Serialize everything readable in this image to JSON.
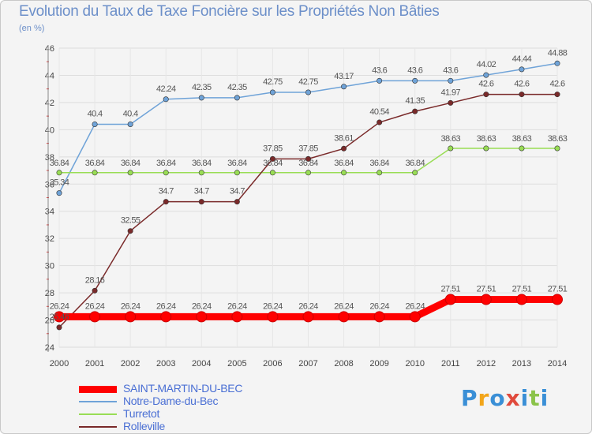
{
  "title": "Evolution du Taux de Taxe Foncière sur les Propriétés Non Bâties",
  "unit_label": "(en %)",
  "logo": {
    "text": "Proxiti",
    "colors": [
      "#3a8fd6",
      "#f2a51a",
      "#3a8fd6",
      "#e04a3c",
      "#3a8fd6",
      "#8bc34a",
      "#3a8fd6"
    ]
  },
  "chart_data": {
    "type": "line",
    "title": "Evolution du Taux de Taxe Foncière sur les Propriétés Non Bâties",
    "ylabel": "(en %)",
    "xlabel": "",
    "x": [
      "2000",
      "2001",
      "2002",
      "2003",
      "2004",
      "2005",
      "2006",
      "2007",
      "2008",
      "2009",
      "2010",
      "2011",
      "2012",
      "2013",
      "2014"
    ],
    "ylim": [
      24,
      46
    ],
    "yticks": [
      24,
      26,
      28,
      30,
      32,
      34,
      36,
      38,
      40,
      42,
      44,
      46
    ],
    "grid": true,
    "series": [
      {
        "name": "SAINT-MARTIN-DU-BEC",
        "color": "#ff0000",
        "values": [
          26.24,
          26.24,
          26.24,
          26.24,
          26.24,
          26.24,
          26.24,
          26.24,
          26.24,
          26.24,
          26.24,
          27.51,
          27.51,
          27.51,
          27.51
        ],
        "labels": [
          "26.24",
          "26.24",
          "26.24",
          "26.24",
          "26.24",
          "26.24",
          "26.24",
          "26.24",
          "26.24",
          "26.24",
          "26.24",
          "27.51",
          "27.51",
          "27.51",
          "27.51"
        ]
      },
      {
        "name": "Notre-Dame-du-Bec",
        "color": "#6fa3d8",
        "values": [
          35.34,
          40.4,
          40.4,
          42.24,
          42.35,
          42.35,
          42.75,
          42.75,
          43.17,
          43.6,
          43.6,
          43.6,
          44.02,
          44.44,
          44.88
        ],
        "labels": [
          "35.34",
          "40.4",
          "40.4",
          "42.24",
          "42.35",
          "42.35",
          "42.75",
          "42.75",
          "43.17",
          "43.6",
          "43.6",
          "43.6",
          "44.02",
          "44.44",
          "44.88"
        ]
      },
      {
        "name": "Turretot",
        "color": "#99dd55",
        "values": [
          36.84,
          36.84,
          36.84,
          36.84,
          36.84,
          36.84,
          36.84,
          36.84,
          36.84,
          36.84,
          36.84,
          38.63,
          38.63,
          38.63,
          38.63
        ],
        "labels": [
          "36.84",
          "36.84",
          "36.84",
          "36.84",
          "36.84",
          "36.84",
          "36.84",
          "36.84",
          "36.84",
          "36.84",
          "36.84",
          "38.63",
          "38.63",
          "38.63",
          "38.63"
        ]
      },
      {
        "name": "Rolleville",
        "color": "#7a2a2a",
        "values": [
          25.46,
          28.16,
          32.55,
          34.7,
          34.7,
          34.7,
          37.85,
          37.85,
          38.61,
          40.54,
          41.35,
          41.97,
          42.6,
          42.6,
          42.6
        ],
        "labels": [
          "25.46",
          "28.16",
          "32.55",
          "34.7",
          "34.7",
          "34.7",
          "37.85",
          "37.85",
          "38.61",
          "40.54",
          "41.35",
          "41.97",
          "42.6",
          "42.6",
          "42.6"
        ]
      }
    ]
  }
}
